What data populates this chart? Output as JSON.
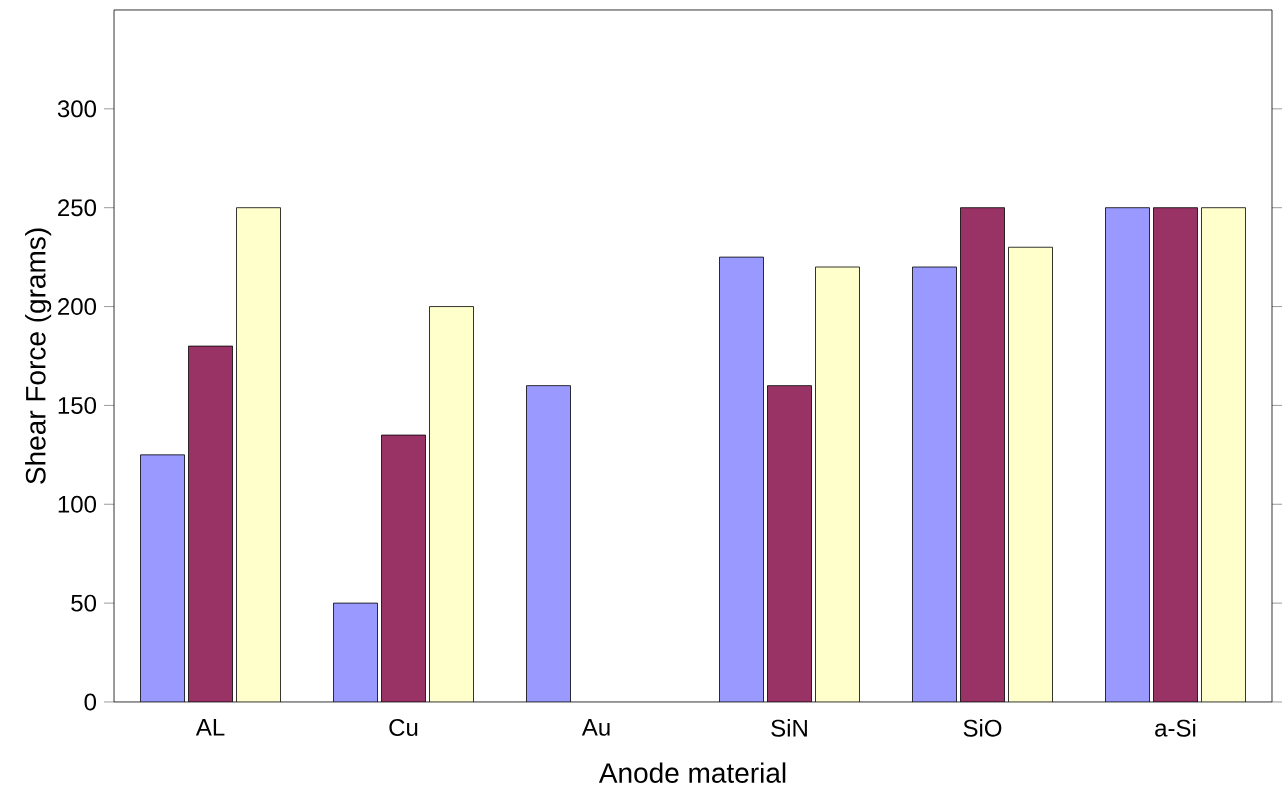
{
  "chart_data": {
    "type": "bar",
    "xlabel": "Anode material",
    "ylabel": "Shear Force (grams)",
    "categories": [
      "AL",
      "Cu",
      "Au",
      "SiN",
      "SiO",
      "a-Si"
    ],
    "series": [
      {
        "color": "#9999ff",
        "values": [
          125,
          50,
          160,
          225,
          220,
          250
        ]
      },
      {
        "color": "#993366",
        "values": [
          180,
          135,
          null,
          160,
          250,
          250
        ]
      },
      {
        "color": "#ffffcc",
        "values": [
          250,
          200,
          null,
          220,
          230,
          250
        ]
      }
    ],
    "ylim": [
      0,
      350
    ],
    "yticks": [
      0,
      50,
      100,
      150,
      200,
      250,
      300
    ]
  }
}
